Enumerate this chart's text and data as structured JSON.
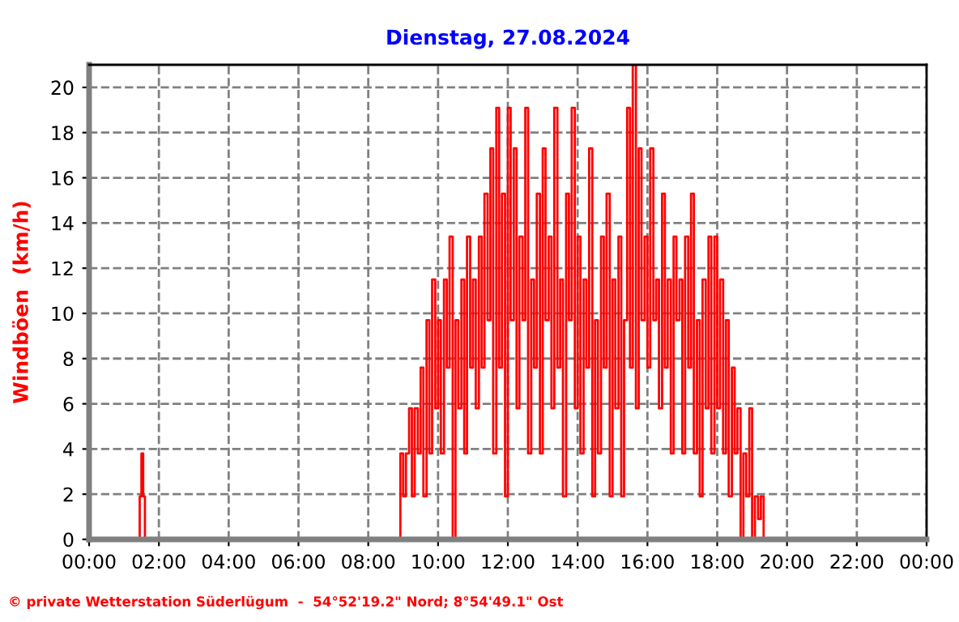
{
  "chart_data": {
    "type": "step",
    "title": "Dienstag, 27.08.2024",
    "ylabel": "Windböen  (km/h)",
    "annotations": [
      "© private Wetterstation Süderlügum  -  54°52'19.2\" Nord; 8°54'49.1\" Ost"
    ],
    "grid": true,
    "xlim": [
      0,
      24
    ],
    "xticks": [
      {
        "value": 0,
        "label": "00:00"
      },
      {
        "value": 2,
        "label": "02:00"
      },
      {
        "value": 4,
        "label": "04:00"
      },
      {
        "value": 6,
        "label": "06:00"
      },
      {
        "value": 8,
        "label": "08:00"
      },
      {
        "value": 10,
        "label": "10:00"
      },
      {
        "value": 12,
        "label": "12:00"
      },
      {
        "value": 14,
        "label": "14:00"
      },
      {
        "value": 16,
        "label": "16:00"
      },
      {
        "value": 18,
        "label": "18:00"
      },
      {
        "value": 20,
        "label": "20:00"
      },
      {
        "value": 22,
        "label": "22:00"
      },
      {
        "value": 24,
        "label": "00:00"
      }
    ],
    "ylim": [
      0,
      21
    ],
    "yticks": [
      0,
      2,
      4,
      6,
      8,
      10,
      12,
      14,
      16,
      18,
      20
    ],
    "series": [
      {
        "color": "#ff0000",
        "x": [
          0,
          1.45,
          1.5,
          1.55,
          1.6,
          1.7,
          8.92,
          9.0,
          9.08,
          9.17,
          9.25,
          9.33,
          9.42,
          9.5,
          9.58,
          9.67,
          9.75,
          9.83,
          9.92,
          10.0,
          10.08,
          10.17,
          10.25,
          10.33,
          10.42,
          10.5,
          10.58,
          10.67,
          10.75,
          10.83,
          10.92,
          11.0,
          11.08,
          11.17,
          11.25,
          11.33,
          11.42,
          11.5,
          11.58,
          11.67,
          11.75,
          11.83,
          11.92,
          12.0,
          12.08,
          12.17,
          12.25,
          12.33,
          12.42,
          12.5,
          12.58,
          12.67,
          12.75,
          12.83,
          12.92,
          13.0,
          13.08,
          13.17,
          13.25,
          13.33,
          13.42,
          13.5,
          13.58,
          13.67,
          13.75,
          13.83,
          13.92,
          14.0,
          14.08,
          14.17,
          14.25,
          14.33,
          14.42,
          14.5,
          14.58,
          14.67,
          14.75,
          14.83,
          14.92,
          15.0,
          15.08,
          15.17,
          15.25,
          15.33,
          15.42,
          15.5,
          15.58,
          15.67,
          15.75,
          15.83,
          15.92,
          16.0,
          16.08,
          16.17,
          16.25,
          16.33,
          16.42,
          16.5,
          16.58,
          16.67,
          16.75,
          16.83,
          16.92,
          17.0,
          17.08,
          17.17,
          17.25,
          17.33,
          17.42,
          17.5,
          17.58,
          17.67,
          17.75,
          17.83,
          17.92,
          18.0,
          18.08,
          18.17,
          18.25,
          18.33,
          18.42,
          18.5,
          18.58,
          18.67,
          18.75,
          18.83,
          18.92,
          19.0,
          19.08,
          19.17,
          19.25,
          19.33,
          24
        ],
        "values": [
          0,
          1.9,
          3.8,
          1.9,
          0,
          0,
          3.8,
          1.9,
          3.8,
          5.8,
          1.9,
          5.8,
          3.8,
          7.6,
          1.9,
          9.7,
          3.8,
          11.5,
          5.8,
          9.7,
          3.8,
          11.5,
          7.6,
          13.4,
          0,
          9.7,
          5.8,
          11.5,
          3.8,
          13.4,
          7.6,
          11.5,
          5.8,
          13.4,
          7.6,
          15.3,
          9.7,
          17.3,
          3.8,
          19.1,
          7.6,
          15.3,
          1.9,
          19.1,
          9.7,
          17.3,
          5.8,
          13.4,
          9.7,
          19.1,
          3.8,
          11.5,
          7.6,
          15.3,
          3.8,
          17.3,
          9.7,
          13.4,
          5.8,
          19.1,
          7.6,
          11.5,
          1.9,
          15.3,
          9.7,
          19.1,
          5.8,
          13.4,
          3.8,
          11.5,
          7.6,
          17.3,
          1.9,
          9.7,
          3.8,
          13.4,
          7.6,
          15.3,
          1.9,
          11.5,
          5.8,
          13.4,
          1.9,
          9.7,
          19.1,
          7.6,
          21.0,
          5.8,
          17.3,
          9.7,
          13.4,
          7.6,
          17.3,
          9.7,
          11.5,
          5.8,
          15.3,
          7.6,
          11.5,
          3.8,
          13.4,
          9.7,
          11.5,
          3.8,
          13.4,
          7.6,
          15.3,
          3.8,
          9.7,
          1.9,
          11.5,
          5.8,
          13.4,
          3.8,
          13.4,
          5.8,
          11.5,
          3.8,
          9.7,
          1.9,
          7.6,
          3.8,
          5.8,
          0,
          3.8,
          1.9,
          5.8,
          0,
          1.9,
          0.9,
          1.9,
          0,
          0
        ]
      }
    ]
  }
}
